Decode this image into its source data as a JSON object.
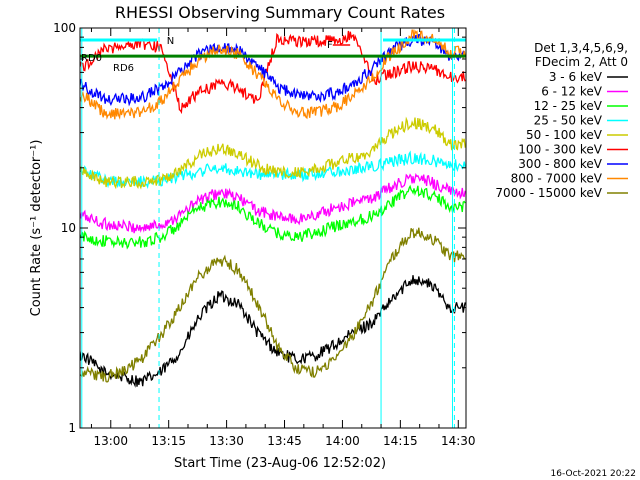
{
  "chart_data": {
    "type": "line",
    "title": "RHESSI Observing Summary Count Rates",
    "xlabel": "Start Time (23-Aug-06 12:52:02)",
    "ylabel": "Count Rate (s⁻¹ detector⁻¹)",
    "y_scale": "log",
    "ylim": [
      1,
      100
    ],
    "xlim": [
      "12:52:02",
      "14:32"
    ],
    "x_ticks": [
      "13:00",
      "13:15",
      "13:30",
      "13:45",
      "14:00",
      "14:15",
      "14:30"
    ],
    "y_ticks": [
      "1",
      "10",
      "100"
    ],
    "legend_header": [
      "Det 1,3,4,5,6,9,",
      "FDecim 2, Att 0"
    ],
    "legend_position": "top-right",
    "timestamp": "16-Oct-2021 20:22",
    "annotations": {
      "rd0": "RD0",
      "rd6": "RD6",
      "n_flag": "N",
      "f_flag": "F"
    },
    "series": [
      {
        "name": "3 - 6 keV",
        "color": "#000000",
        "x": [
          "12:53",
          "12:58",
          "13:03",
          "13:08",
          "13:13",
          "13:18",
          "13:23",
          "13:28",
          "13:33",
          "13:38",
          "13:43",
          "13:48",
          "13:53",
          "13:58",
          "14:03",
          "14:08",
          "14:13",
          "14:18",
          "14:23",
          "14:28"
        ],
        "values": [
          2.3,
          1.9,
          1.8,
          1.7,
          1.9,
          2.4,
          3.6,
          4.6,
          4.2,
          3.0,
          2.4,
          2.2,
          2.3,
          2.6,
          3.0,
          3.4,
          4.4,
          5.6,
          5.2,
          4.0
        ]
      },
      {
        "name": "6 - 12 keV",
        "color": "#ff00ff",
        "x": [
          "12:53",
          "12:58",
          "13:03",
          "13:08",
          "13:13",
          "13:18",
          "13:23",
          "13:28",
          "13:33",
          "13:38",
          "13:43",
          "13:48",
          "13:53",
          "13:58",
          "14:03",
          "14:08",
          "14:13",
          "14:18",
          "14:23",
          "14:28"
        ],
        "values": [
          11.5,
          10.5,
          10.2,
          10.0,
          10.4,
          11.6,
          13.8,
          15.0,
          14.2,
          12.2,
          11.4,
          11.0,
          11.6,
          12.6,
          13.4,
          14.2,
          16.2,
          17.8,
          17.0,
          15.2
        ]
      },
      {
        "name": "12 - 25 keV",
        "color": "#00ff00",
        "x": [
          "12:53",
          "12:58",
          "13:03",
          "13:08",
          "13:13",
          "13:18",
          "13:23",
          "13:28",
          "13:33",
          "13:38",
          "13:43",
          "13:48",
          "13:53",
          "13:58",
          "14:03",
          "14:08",
          "14:13",
          "14:18",
          "14:23",
          "14:28"
        ],
        "values": [
          9.0,
          8.6,
          8.4,
          8.5,
          9.0,
          10.4,
          12.6,
          13.6,
          12.8,
          10.6,
          9.4,
          9.0,
          9.4,
          10.2,
          10.8,
          11.6,
          13.6,
          15.6,
          14.6,
          12.8
        ]
      },
      {
        "name": "25 - 50 keV",
        "color": "#00ffff",
        "x": [
          "12:53",
          "12:58",
          "13:03",
          "13:08",
          "13:13",
          "13:18",
          "13:23",
          "13:28",
          "13:33",
          "13:38",
          "13:43",
          "13:48",
          "13:53",
          "13:58",
          "14:03",
          "14:08",
          "14:13",
          "14:18",
          "14:23",
          "14:28"
        ],
        "values": [
          19.0,
          17.5,
          17.0,
          17.0,
          17.4,
          18.2,
          19.2,
          20.0,
          19.4,
          18.6,
          18.4,
          18.4,
          18.8,
          19.2,
          19.8,
          20.4,
          21.4,
          22.4,
          21.8,
          20.6
        ]
      },
      {
        "name": "50 - 100 keV",
        "color": "#cccc00",
        "x": [
          "12:53",
          "12:58",
          "13:03",
          "13:08",
          "13:13",
          "13:18",
          "13:23",
          "13:28",
          "13:33",
          "13:38",
          "13:43",
          "13:48",
          "13:53",
          "13:58",
          "14:03",
          "14:08",
          "14:13",
          "14:18",
          "14:23",
          "14:28"
        ],
        "values": [
          19.5,
          17.0,
          17.0,
          17.0,
          17.5,
          19.5,
          23.0,
          25.0,
          23.5,
          20.5,
          19.0,
          19.0,
          19.5,
          21.0,
          22.5,
          24.5,
          30.0,
          34.0,
          32.0,
          26.5
        ]
      },
      {
        "name": "100 - 300 keV",
        "color": "#ff0000",
        "x": [
          "12:53",
          "12:58",
          "13:03",
          "13:08",
          "13:13",
          "13:18",
          "13:23",
          "13:28",
          "13:33",
          "13:38",
          "13:43",
          "13:48",
          "13:53",
          "13:58",
          "14:03",
          "14:08",
          "14:13",
          "14:18",
          "14:23",
          "14:28"
        ],
        "values": [
          64,
          78,
          82,
          83,
          80,
          40,
          48,
          53,
          50,
          43,
          88,
          86,
          86,
          87,
          92,
          55,
          60,
          64,
          63,
          57
        ]
      },
      {
        "name": "300 - 800 keV",
        "color": "#0000ff",
        "x": [
          "12:53",
          "12:58",
          "13:03",
          "13:08",
          "13:13",
          "13:18",
          "13:23",
          "13:28",
          "13:33",
          "13:38",
          "13:43",
          "13:48",
          "13:53",
          "13:58",
          "14:03",
          "14:08",
          "14:13",
          "14:18",
          "14:23",
          "14:28"
        ],
        "values": [
          52,
          44,
          44,
          45,
          50,
          60,
          74,
          81,
          78,
          64,
          51,
          46,
          46,
          47,
          53,
          63,
          78,
          88,
          85,
          72
        ]
      },
      {
        "name": "800 - 7000 keV",
        "color": "#ff8800",
        "x": [
          "12:53",
          "12:58",
          "13:03",
          "13:08",
          "13:13",
          "13:18",
          "13:23",
          "13:28",
          "13:33",
          "13:38",
          "13:43",
          "13:48",
          "13:53",
          "13:58",
          "14:03",
          "14:08",
          "14:13",
          "14:18",
          "14:23",
          "14:28"
        ],
        "values": [
          46,
          38,
          37,
          38,
          43,
          55,
          70,
          78,
          74,
          59,
          44,
          38,
          38,
          40,
          46,
          57,
          75,
          92,
          88,
          76
        ]
      },
      {
        "name": "7000 - 15000 keV",
        "color": "#808000",
        "x": [
          "12:53",
          "12:58",
          "13:03",
          "13:08",
          "13:13",
          "13:18",
          "13:23",
          "13:28",
          "13:33",
          "13:38",
          "13:43",
          "13:48",
          "13:53",
          "13:58",
          "14:03",
          "14:08",
          "14:13",
          "14:18",
          "14:23",
          "14:28"
        ],
        "values": [
          1.9,
          1.8,
          1.9,
          2.2,
          2.9,
          4.0,
          5.8,
          7.0,
          6.2,
          4.2,
          2.6,
          2.0,
          1.9,
          2.2,
          3.0,
          4.4,
          7.2,
          9.6,
          9.0,
          7.2
        ]
      }
    ]
  }
}
